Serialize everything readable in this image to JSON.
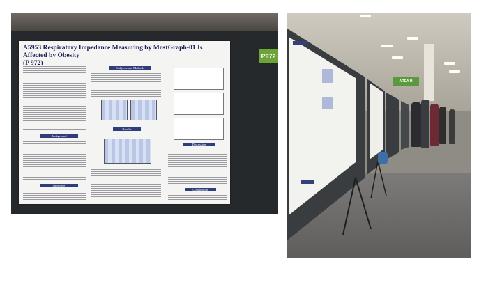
{
  "left_photo": {
    "poster": {
      "title_line1": "A5953 Respiratory Impedance Measuring by MostGraph-01 Is Affected by Obesity",
      "title_line2": "(P 972)",
      "board_number": "P972",
      "sections": [
        "Subjects and Methods",
        "Results",
        "Discussion",
        "Background",
        "Objective",
        "Conclusions"
      ]
    }
  },
  "right_photo": {
    "area_sign": "AREA H"
  },
  "colors": {
    "board": "#26292c",
    "poster_heading": "#2f3e7a",
    "number_tag": "#6da43a"
  }
}
